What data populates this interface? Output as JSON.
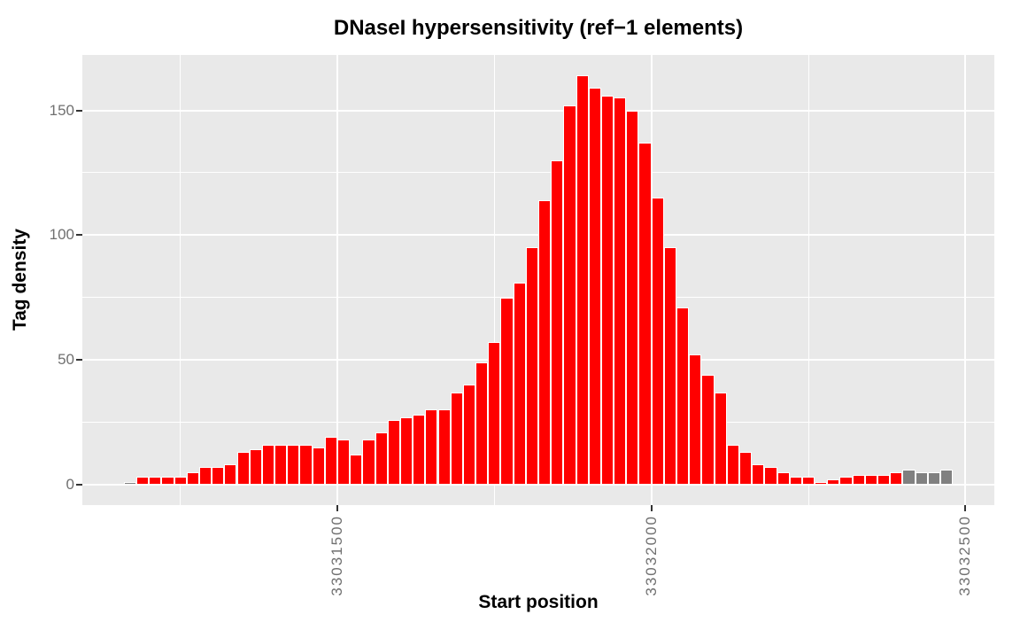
{
  "chart_data": {
    "type": "bar",
    "title": "DNaseI hypersensitivity (ref−1 elements)",
    "xlabel": "Start position",
    "ylabel": "Tag density",
    "legend": "none",
    "grid": "on",
    "panel_bg": "#E9E9E9",
    "grid_color": "#FFFFFF",
    "bar_color": "#FF0000",
    "muted_bar_color": "#808080",
    "bar_outline_color": "#FFFFFF",
    "tick_text_color": "#707070",
    "tick_mark_color": "#333333",
    "xlim": [
      33031094,
      33032546
    ],
    "ylim": [
      -8.2,
      172.2
    ],
    "x_ticks": [
      33031500,
      33032000,
      33032500
    ],
    "x_tick_labels": [
      "33031500",
      "33032000",
      "33032500"
    ],
    "x_minor_ticks": [
      33031250,
      33031750,
      33032250
    ],
    "y_ticks": [
      0,
      50,
      100,
      150
    ],
    "y_tick_labels": [
      "0",
      "50",
      "100",
      "150"
    ],
    "y_minor_ticks": [
      25,
      75,
      125
    ],
    "bin_start": 33031160,
    "bin_width": 20,
    "values": [
      1,
      3,
      3,
      3,
      3,
      5,
      7,
      7,
      8,
      13,
      14,
      16,
      16,
      16,
      16,
      15,
      19,
      18,
      12,
      18,
      21,
      26,
      27,
      28,
      30,
      30,
      37,
      40,
      49,
      57,
      75,
      81,
      95,
      114,
      130,
      152,
      164,
      159,
      156,
      155,
      150,
      137,
      115,
      95,
      71,
      52,
      44,
      37,
      16,
      13,
      8,
      7,
      5,
      3,
      3,
      1,
      2,
      3,
      4,
      4,
      4,
      5,
      6,
      5,
      5,
      6
    ],
    "muted_indices": [
      0,
      62,
      63,
      64,
      65
    ]
  }
}
